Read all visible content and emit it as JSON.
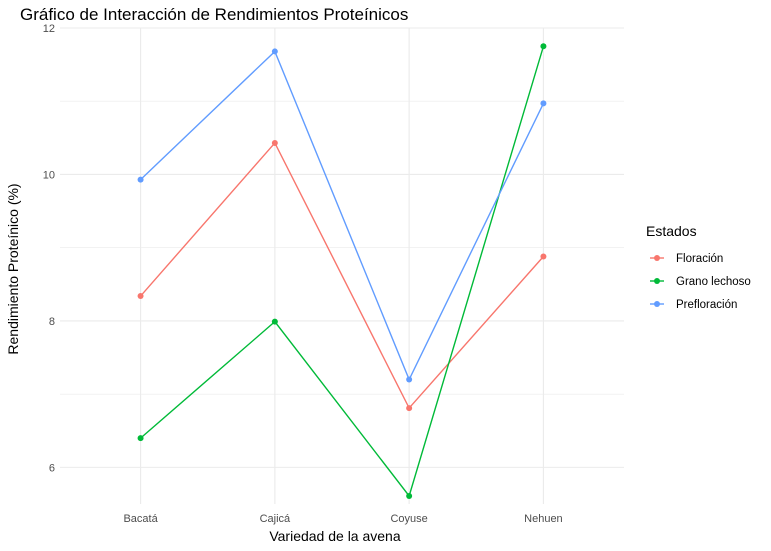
{
  "chart_data": {
    "type": "line",
    "title": "Gráfico de Interacción de Rendimientos Proteínicos",
    "xlabel": "Variedad de la avena",
    "ylabel": "Rendimiento Proteínico (%)",
    "categories": [
      "Bacatá",
      "Cajicá",
      "Coyuse",
      "Nehuen"
    ],
    "ylim": [
      5.5,
      12.0
    ],
    "yticks": [
      "6",
      "8",
      "10",
      "12"
    ],
    "grid": true,
    "legend": {
      "title": "Estados",
      "position": "right"
    },
    "series": [
      {
        "name": "Floración",
        "color": "#F8766D",
        "values": [
          8.34,
          10.43,
          6.81,
          8.88
        ]
      },
      {
        "name": "Grano lechoso",
        "color": "#00BA38",
        "values": [
          6.4,
          7.99,
          5.61,
          11.75
        ]
      },
      {
        "name": "Prefloración",
        "color": "#619CFF",
        "values": [
          9.93,
          11.68,
          7.2,
          10.97
        ]
      }
    ]
  }
}
